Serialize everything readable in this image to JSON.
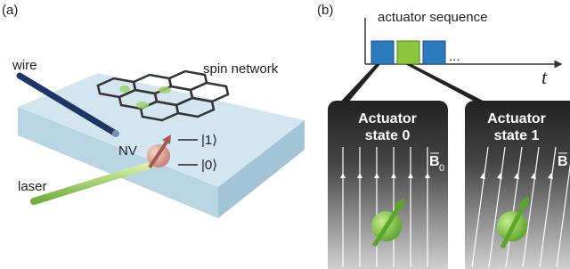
{
  "panel_a": {
    "label": "(a)",
    "wire": "wire",
    "network": "spin network",
    "nv": "NV",
    "level_1": "|1⟩",
    "level_0": "|0⟩",
    "laser": "laser"
  },
  "panel_b": {
    "label": "(b)",
    "sequence_title": "actuator sequence",
    "time_axis": "t",
    "ellipsis": "...",
    "states": [
      {
        "title_line1": "Actuator",
        "title_line2": "state 0",
        "field": "B",
        "field_sub": "0"
      },
      {
        "title_line1": "Actuator",
        "title_line2": "state 1",
        "field": "B"
      }
    ]
  }
}
